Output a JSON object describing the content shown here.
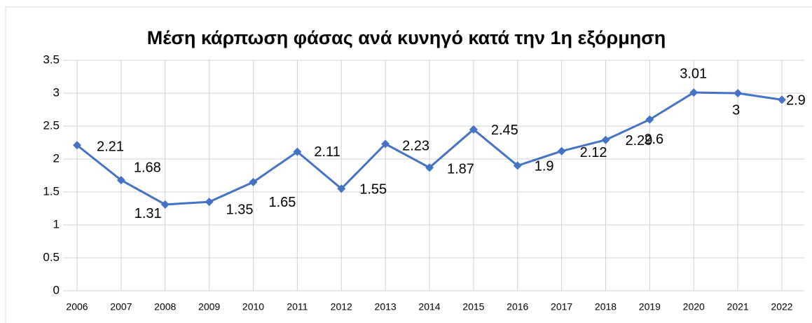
{
  "chart_data": {
    "type": "line",
    "title": "Μέση κάρπωση φάσας ανά κυνηγό κατά την 1η εξόρμηση",
    "categories": [
      "2006",
      "2007",
      "2008",
      "2009",
      "2010",
      "2011",
      "2012",
      "2013",
      "2014",
      "2015",
      "2016",
      "2017",
      "2018",
      "2019",
      "2020",
      "2021",
      "2022"
    ],
    "series": [
      {
        "name": "Μέση κάρπωση",
        "color": "#4472c4",
        "values": [
          2.21,
          1.68,
          1.31,
          1.35,
          1.65,
          2.11,
          1.55,
          2.23,
          1.87,
          2.45,
          1.9,
          2.12,
          2.29,
          2.6,
          3.01,
          3,
          2.9
        ]
      }
    ],
    "ylim": [
      0,
      3.5
    ],
    "yticks": [
      0,
      0.5,
      1,
      1.5,
      2,
      2.5,
      3,
      3.5
    ],
    "grid": true
  }
}
